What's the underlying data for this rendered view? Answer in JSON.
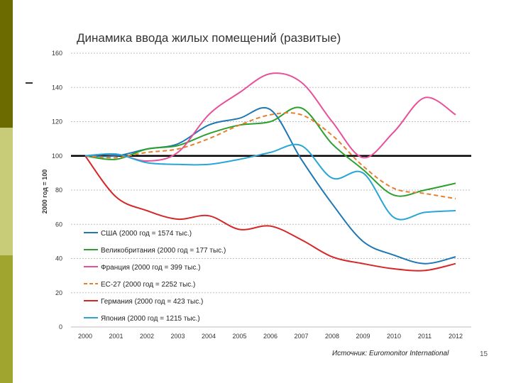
{
  "slide": {
    "title": "Динамика ввода жилых помещений (развитые)",
    "source": "Источник: Euromonitor International",
    "page_number": "15",
    "colors": {
      "bar_dark": "#6b6b00",
      "bar_light": "#c8cc78",
      "bar_mid": "#9fa52e"
    }
  },
  "chart_data": {
    "type": "line",
    "title": "",
    "xlabel": "",
    "ylabel": "2000 год = 100",
    "x": [
      "2000",
      "2001",
      "2002",
      "2003",
      "2004",
      "2005",
      "2006",
      "2007",
      "2008",
      "2009",
      "2010",
      "2011",
      "2012"
    ],
    "ylim": [
      0,
      160
    ],
    "yticks": [
      "0",
      "20",
      "40",
      "60",
      "80",
      "100",
      "120",
      "140",
      "160"
    ],
    "grid": true,
    "reference_line": 100,
    "legend_position": "bottom-left",
    "series": [
      {
        "name": "США (2000 год = 1574 тыс.)",
        "color": "#1f77b4",
        "dashed": false,
        "values": [
          100,
          100,
          104,
          107,
          118,
          122,
          127,
          98,
          72,
          50,
          42,
          37,
          41
        ]
      },
      {
        "name": "Великобритания (2000 год = 177 тыс.)",
        "color": "#2ca02c",
        "dashed": false,
        "values": [
          100,
          98,
          104,
          106,
          113,
          118,
          120,
          128,
          107,
          92,
          77,
          80,
          84
        ]
      },
      {
        "name": "Франция (2000 год = 399 тыс.)",
        "color": "#e8509a",
        "dashed": false,
        "values": [
          100,
          101,
          97,
          102,
          124,
          137,
          148,
          143,
          120,
          99,
          114,
          134,
          124
        ]
      },
      {
        "name": "ЕС-27 (2000 год = 2252 тыс.)",
        "color": "#e87f2c",
        "dashed": true,
        "values": [
          100,
          99,
          102,
          104,
          110,
          118,
          124,
          124,
          112,
          94,
          81,
          78,
          75
        ]
      },
      {
        "name": "Германия (2000 год = 423 тыс.)",
        "color": "#d62728",
        "dashed": false,
        "values": [
          100,
          76,
          68,
          63,
          65,
          57,
          59,
          51,
          41,
          37,
          34,
          33,
          37
        ]
      },
      {
        "name": "Япония (2000 год = 1215 тыс.)",
        "color": "#2aa6d6",
        "dashed": false,
        "values": [
          100,
          101,
          96,
          95,
          95,
          98,
          102,
          106,
          87,
          90,
          64,
          67,
          68
        ]
      }
    ]
  }
}
